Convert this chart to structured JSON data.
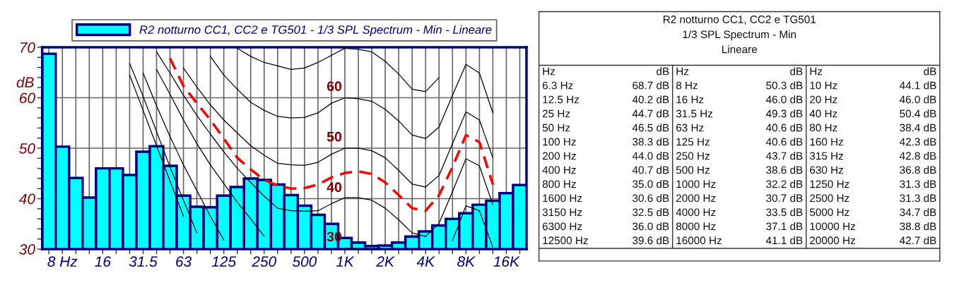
{
  "chart_data": [
    {
      "type": "bar",
      "categories": [
        null,
        "8 Hz",
        null,
        null,
        "16",
        null,
        null,
        "31.5",
        null,
        null,
        "63",
        null,
        null,
        "125",
        null,
        null,
        "250",
        null,
        null,
        "500",
        null,
        null,
        "1K",
        null,
        null,
        "2K",
        null,
        null,
        "4K",
        null,
        null,
        "8K",
        null,
        null,
        "16K",
        null
      ],
      "series": [
        {
          "name": "R2 notturno CC1, CC2 e TG501 - 1/3 SPL Spectrum - Min - Lineare",
          "color": "#00ffff",
          "values": [
            68.7,
            50.3,
            44.1,
            40.2,
            46.0,
            46.0,
            44.7,
            49.3,
            50.4,
            46.5,
            40.6,
            38.4,
            38.3,
            40.6,
            42.3,
            44.0,
            43.7,
            42.8,
            40.7,
            38.6,
            36.8,
            35.0,
            32.2,
            31.3,
            30.6,
            30.7,
            31.3,
            32.5,
            33.5,
            34.7,
            36.0,
            37.1,
            38.8,
            39.6,
            41.1,
            42.7
          ]
        },
        {
          "type": "line",
          "color": "#000000",
          "values": [
            null,
            null,
            null,
            null,
            null,
            null,
            64.5,
            57.5,
            50.5,
            43.5,
            36.5,
            null,
            null,
            null,
            null,
            null,
            null,
            null,
            null,
            null,
            null,
            null,
            null,
            null,
            null,
            null,
            null,
            null,
            null,
            null,
            null,
            null,
            null,
            null,
            null,
            null
          ]
        },
        {
          "type": "line",
          "color": "#000000",
          "values": [
            null,
            null,
            null,
            null,
            null,
            null,
            66.8,
            60.3,
            53.3,
            46.3,
            39.7,
            33.2,
            null,
            null,
            null,
            null,
            null,
            null,
            null,
            null,
            null,
            null,
            null,
            null,
            null,
            null,
            null,
            null,
            null,
            null,
            null,
            null,
            null,
            null,
            null,
            null
          ]
        },
        {
          "type": "line",
          "color": "#000000",
          "values": [
            null,
            null,
            null,
            null,
            null,
            null,
            null,
            64.9,
            58.4,
            52.3,
            46.7,
            41.6,
            36.5,
            31.8,
            null,
            null,
            null,
            null,
            null,
            null,
            null,
            null,
            null,
            null,
            null,
            null,
            null,
            null,
            null,
            null,
            null,
            null,
            null,
            null,
            null,
            null
          ]
        },
        {
          "type": "line",
          "color": "#000000",
          "values": [
            null,
            null,
            null,
            null,
            null,
            null,
            null,
            null,
            65.6,
            60.7,
            55.6,
            50.9,
            46.7,
            43.0,
            39.3,
            36.0,
            32.5,
            null,
            null,
            null,
            null,
            null,
            null,
            null,
            null,
            null,
            null,
            null,
            null,
            null,
            31.7,
            38.6,
            37.6,
            30.4,
            null,
            null
          ]
        },
        {
          "type": "line",
          "color": "#000000",
          "values": [
            null,
            null,
            null,
            null,
            null,
            null,
            null,
            null,
            null,
            null,
            null,
            null,
            null,
            null,
            null,
            null,
            null,
            null,
            null,
            null,
            null,
            null,
            30.2,
            30.1,
            null,
            null,
            null,
            null,
            null,
            null,
            null,
            null,
            null,
            null,
            null,
            null
          ]
        },
        {
          "type": "line",
          "color": "#000000",
          "values": [
            null,
            null,
            null,
            null,
            null,
            null,
            null,
            null,
            69.1,
            64.9,
            60.5,
            56.5,
            52.8,
            49.3,
            46.0,
            43.2,
            40.5,
            38.1,
            37.6,
            37.5,
            37.6,
            39.0,
            40.2,
            40.2,
            39.7,
            38.1,
            35.8,
            33.2,
            32.5,
            35.1,
            41.4,
            47.9,
            46.5,
            38.8,
            null,
            null
          ]
        },
        {
          "type": "line",
          "color": "#000000",
          "values": [
            null,
            null,
            null,
            null,
            null,
            null,
            null,
            null,
            null,
            null,
            65.9,
            62.1,
            58.6,
            55.6,
            53.0,
            50.5,
            48.6,
            47.0,
            46.7,
            46.6,
            47.2,
            48.8,
            50.0,
            50.0,
            49.5,
            48.1,
            45.6,
            42.9,
            42.3,
            44.6,
            50.9,
            57.2,
            55.6,
            48.1,
            null,
            null
          ]
        },
        {
          "type": "line",
          "color": "#000000",
          "values": [
            null,
            null,
            null,
            null,
            null,
            null,
            null,
            null,
            null,
            null,
            null,
            null,
            68.2,
            64.5,
            61.7,
            59.1,
            57.5,
            56.3,
            56.0,
            56.1,
            57.0,
            58.9,
            60.0,
            59.8,
            59.3,
            57.7,
            55.4,
            52.6,
            51.9,
            54.2,
            60.5,
            66.6,
            64.9,
            57.0,
            null,
            null
          ]
        },
        {
          "type": "line",
          "color": "#000000",
          "values": [
            null,
            null,
            null,
            null,
            null,
            null,
            null,
            null,
            null,
            null,
            null,
            null,
            null,
            null,
            69.8,
            68.2,
            67.0,
            66.3,
            65.6,
            65.9,
            67.0,
            68.4,
            69.8,
            69.6,
            69.1,
            67.2,
            64.7,
            61.7,
            61.2,
            64.0,
            null,
            null,
            null,
            null,
            null,
            null
          ]
        },
        {
          "type": "line",
          "color": "#ff0000",
          "line_style": "dashed",
          "values": [
            null,
            null,
            null,
            null,
            null,
            null,
            null,
            null,
            null,
            67.8,
            62.3,
            58.9,
            55.6,
            51.9,
            48.1,
            45.8,
            43.7,
            42.6,
            42.0,
            42.1,
            42.8,
            44.2,
            45.1,
            45.4,
            44.9,
            43.2,
            40.7,
            38.1,
            37.6,
            40.7,
            46.3,
            52.6,
            51.2,
            42.8,
            null,
            null
          ]
        }
      ],
      "ylim": [
        30,
        70
      ],
      "yticks": [
        30,
        {
          "value": 32,
          "label": null
        },
        {
          "value": 34,
          "label": null
        },
        {
          "value": 36,
          "label": null
        },
        {
          "value": 38,
          "label": null
        },
        40,
        {
          "value": 42,
          "label": null
        },
        {
          "value": 44,
          "label": null
        },
        {
          "value": 46,
          "label": null
        },
        {
          "value": 48,
          "label": null
        },
        50,
        {
          "value": 52,
          "label": null
        },
        {
          "value": 54,
          "label": null
        },
        {
          "value": 56,
          "label": null
        },
        {
          "value": 58,
          "label": null
        },
        60,
        {
          "value": 62,
          "label": null
        },
        {
          "value": 64,
          "label": null
        },
        {
          "value": 66,
          "label": null
        },
        {
          "value": 68,
          "label": null
        },
        70
      ],
      "ylabel": "dB",
      "grid": true,
      "legend": "top",
      "annotations": [
        {
          "text": "30",
          "x": "1K",
          "y": 30.2
        },
        {
          "text": "40",
          "x": "1K",
          "y": 40
        },
        {
          "text": "50",
          "x": "1K",
          "y": 50
        },
        {
          "text": "60",
          "x": "1K",
          "y": 60
        }
      ]
    },
    {
      "type": "other",
      "title": "R2 notturno CC1, CC2 e TG501",
      "subtitle": "1/3 SPL Spectrum - Min",
      "annotations": [
        "Lineare",
        "Hz",
        "dB",
        "Hz",
        "dB",
        "Hz",
        "dB",
        "6.3 Hz",
        "68.7 dB",
        "8 Hz",
        "50.3 dB",
        "10 Hz",
        "44.1 dB",
        "12.5 Hz",
        "40.2 dB",
        "16 Hz",
        "46.0 dB",
        "20 Hz",
        "46.0 dB",
        "25 Hz",
        "44.7 dB",
        "31.5 Hz",
        "49.3 dB",
        "40 Hz",
        "50.4 dB",
        "50 Hz",
        "46.5 dB",
        "63 Hz",
        "40.6 dB",
        "80 Hz",
        "38.4 dB",
        "100 Hz",
        "38.3 dB",
        "125 Hz",
        "40.6 dB",
        "160 Hz",
        "42.3 dB",
        "200 Hz",
        "44.0 dB",
        "250 Hz",
        "43.7 dB",
        "315 Hz",
        "42.8 dB",
        "400 Hz",
        "40.7 dB",
        "500 Hz",
        "38.6 dB",
        "630 Hz",
        "36.8 dB",
        "800 Hz",
        "35.0 dB",
        "1000 Hz",
        "32.2 dB",
        "1250 Hz",
        "31.3 dB",
        "1600 Hz",
        "30.6 dB",
        "2000 Hz",
        "30.7 dB",
        "2500 Hz",
        "31.3 dB",
        "3150 Hz",
        "32.5 dB",
        "4000 Hz",
        "33.5 dB",
        "5000 Hz",
        "34.7 dB",
        "6300 Hz",
        "36.0 dB",
        "8000 Hz",
        "37.1 dB",
        "10000 Hz",
        "38.8 dB",
        "12500 Hz",
        "39.6 dB",
        "16000 Hz",
        "41.1 dB",
        "20000 Hz",
        "42.7 dB"
      ]
    }
  ]
}
